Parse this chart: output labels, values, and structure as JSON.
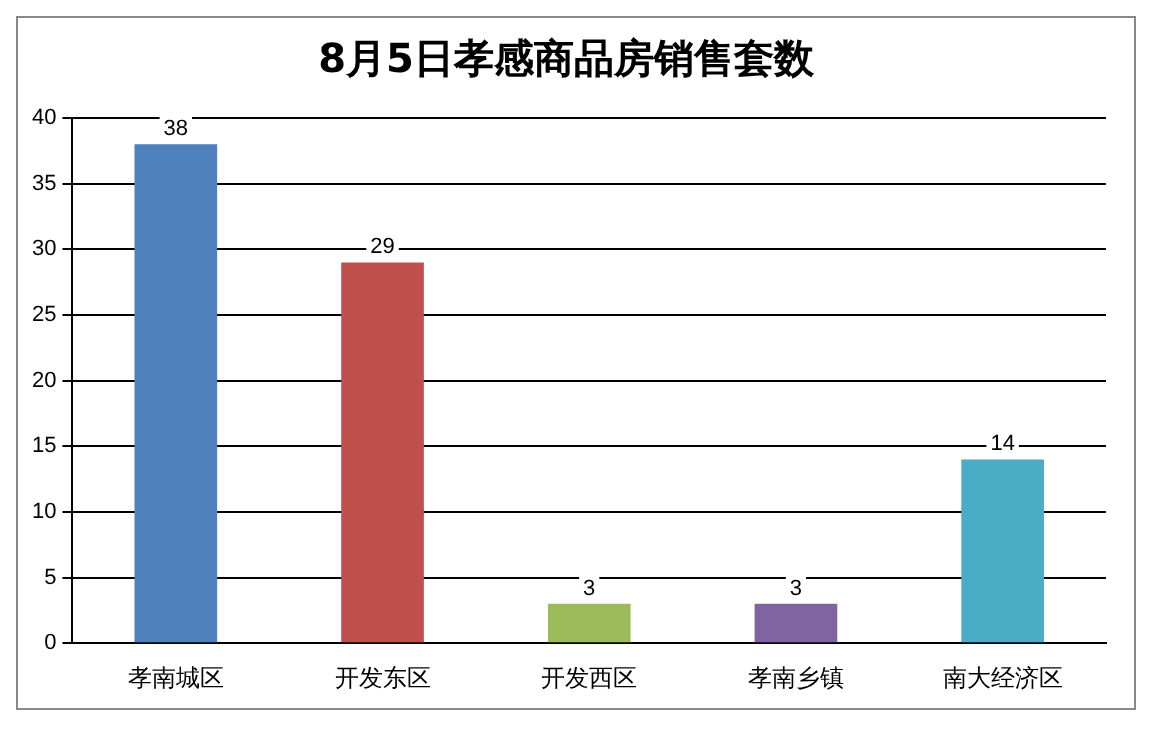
{
  "chart_data": {
    "type": "bar",
    "title": "8月5日孝感商品房销售套数",
    "categories": [
      "孝南城区",
      "开发东区",
      "开发西区",
      "孝南乡镇",
      "南大经济区"
    ],
    "values": [
      38,
      29,
      3,
      3,
      14
    ],
    "colors": [
      "#4f81bd",
      "#c0504d",
      "#9bbb59",
      "#8064a2",
      "#4bacc6"
    ],
    "ylim": [
      0,
      40
    ],
    "yticks": [
      0,
      5,
      10,
      15,
      20,
      25,
      30,
      35,
      40
    ],
    "grid": "y",
    "data_labels": true,
    "legend": false
  }
}
